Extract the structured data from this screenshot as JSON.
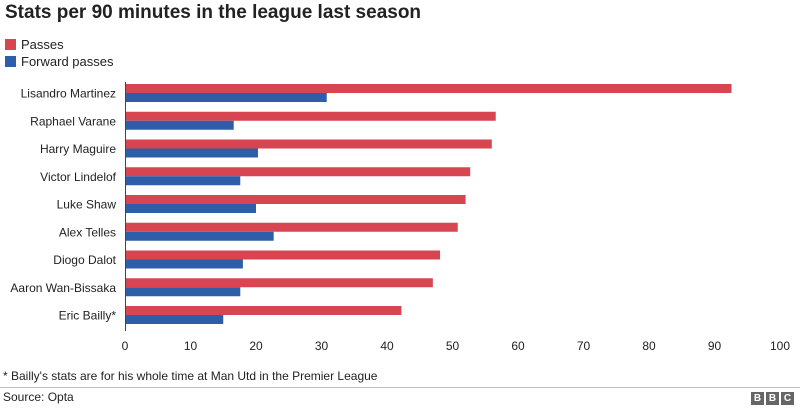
{
  "title": "Stats per 90 minutes in the league last season",
  "legend": [
    {
      "label": "Passes",
      "color": "#d64550"
    },
    {
      "label": "Forward passes",
      "color": "#2e5ea8"
    }
  ],
  "footnote": "* Bailly's stats are for his whole time at Man Utd in the Premier League",
  "source": "Source: Opta",
  "logo": [
    "B",
    "B",
    "C"
  ],
  "chart_data": {
    "type": "bar",
    "orientation": "horizontal",
    "title": "Stats per 90 minutes in the league last season",
    "categories": [
      "Lisandro Martinez",
      "Raphael Varane",
      "Harry Maguire",
      "Victor Lindelof",
      "Luke Shaw",
      "Alex Telles",
      "Diogo Dalot",
      "Aaron Wan-Bissaka",
      "Eric Bailly*"
    ],
    "series": [
      {
        "name": "Passes",
        "color": "#d64550",
        "values": [
          92.6,
          56.6,
          56.0,
          52.7,
          52.0,
          50.8,
          48.1,
          47.0,
          42.2
        ]
      },
      {
        "name": "Forward passes",
        "color": "#2e5ea8",
        "values": [
          30.8,
          16.6,
          20.3,
          17.6,
          20.0,
          22.7,
          18.0,
          17.6,
          15.0
        ]
      }
    ],
    "xlim": [
      0,
      100
    ],
    "xticks": [
      0,
      10,
      20,
      30,
      40,
      50,
      60,
      70,
      80,
      90,
      100
    ],
    "xlabel": "",
    "ylabel": "",
    "grid": false,
    "legend_position": "top-left"
  }
}
